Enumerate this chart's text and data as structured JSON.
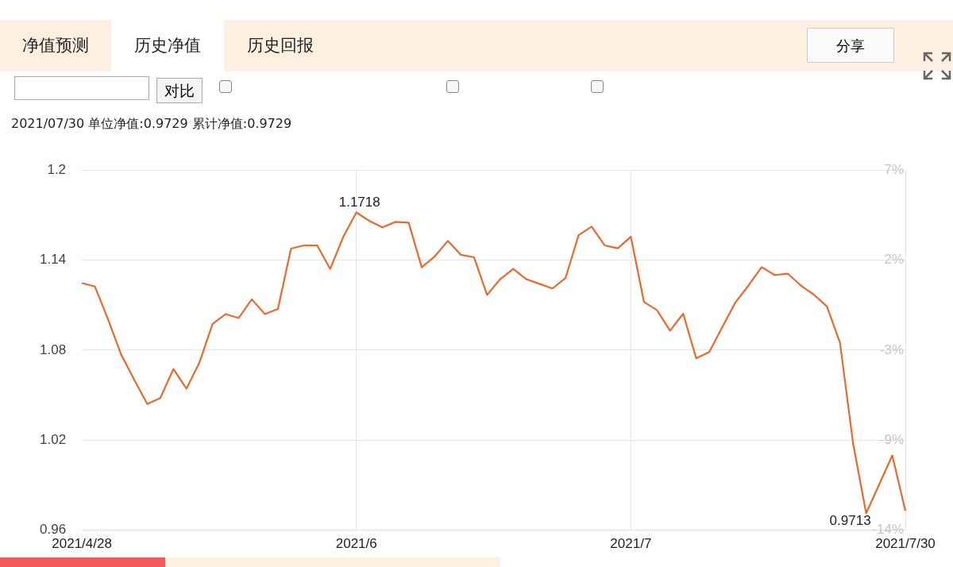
{
  "chart_data": {
    "type": "line",
    "title": "2021/07/30 单位净值:0.9729 累计净值:0.9729",
    "categories": [
      "2021/4/28",
      null,
      null,
      null,
      null,
      null,
      null,
      null,
      null,
      null,
      null,
      null,
      null,
      null,
      null,
      null,
      null,
      null,
      null,
      null,
      null,
      "2021/6",
      null,
      null,
      null,
      null,
      null,
      null,
      null,
      null,
      null,
      null,
      null,
      null,
      null,
      null,
      null,
      null,
      null,
      null,
      null,
      null,
      "2021/7",
      null,
      null,
      null,
      null,
      null,
      null,
      null,
      null,
      null,
      null,
      null,
      null,
      null,
      null,
      null,
      null,
      null,
      null,
      null,
      null,
      "2021/7/30"
    ],
    "series": [
      {
        "color": "#e8692f",
        "values": [
          1.1247,
          1.1224,
          1.1006,
          1.0771,
          1.0604,
          1.0441,
          1.048,
          1.0674,
          1.0543,
          1.0719,
          1.0975,
          1.104,
          1.1014,
          1.1139,
          1.104,
          1.1075,
          1.1477,
          1.1498,
          1.1498,
          1.1341,
          1.1555,
          1.1718,
          1.1661,
          1.1619,
          1.1655,
          1.165,
          1.1352,
          1.1425,
          1.1528,
          1.1435,
          1.1419,
          1.1168,
          1.1273,
          1.1341,
          1.1273,
          1.1242,
          1.1211,
          1.128,
          1.1566,
          1.1623,
          1.1498,
          1.1479,
          1.1556,
          1.1122,
          1.1066,
          1.093,
          1.1043,
          1.0745,
          1.0787,
          1.0954,
          1.1118,
          1.1231,
          1.1353,
          1.1301,
          1.131,
          1.1231,
          1.117,
          1.1091,
          1.0849,
          1.0179,
          0.9713,
          0.9905,
          1.0098,
          0.9729
        ],
        "value_labels": [
          null,
          null,
          null,
          null,
          null,
          null,
          null,
          null,
          null,
          null,
          null,
          null,
          null,
          null,
          null,
          null,
          null,
          null,
          null,
          null,
          null,
          "1.1718",
          null,
          null,
          null,
          null,
          null,
          null,
          null,
          null,
          null,
          null,
          null,
          null,
          null,
          null,
          null,
          null,
          null,
          null,
          null,
          null,
          null,
          null,
          null,
          null,
          null,
          null,
          null,
          null,
          null,
          null,
          null,
          null,
          null,
          null,
          null,
          null,
          null,
          null,
          "0.9713",
          null,
          null,
          null
        ]
      }
    ],
    "ylim": [
      0.96,
      1.2
    ],
    "yticks": [
      0.96,
      1.02,
      1.08,
      1.14,
      1.2
    ],
    "y2lim": [
      -14.13,
      7.33
    ],
    "y2ticks": [
      {
        "value": -14.13,
        "label": "-14%"
      },
      {
        "value": -8.77,
        "label": "-9%"
      },
      {
        "value": -3.4,
        "label": "-3%"
      },
      {
        "value": 1.97,
        "label": "2%"
      },
      {
        "value": 7.33,
        "label": "7%"
      }
    ],
    "grid": true,
    "legend": false,
    "marker": "none",
    "line_style": "solid",
    "annotations": [
      "净值预测",
      "历史净值",
      "历史回报",
      "分享",
      "对比"
    ]
  }
}
